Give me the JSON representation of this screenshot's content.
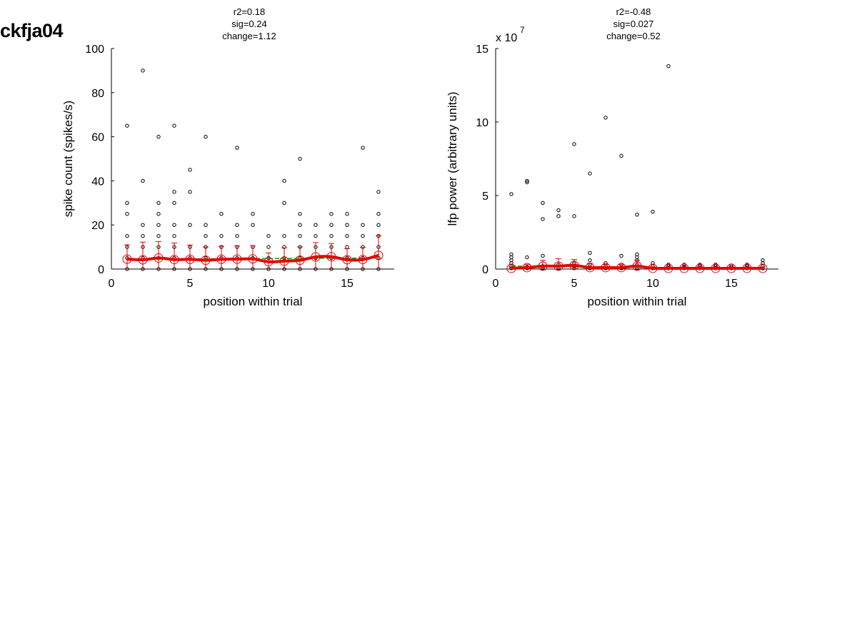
{
  "page": {
    "title": "ckfja04"
  },
  "colors": {
    "mean_line": "#e60000",
    "fit_line": "#00aa00",
    "points": "#000000",
    "axis": "#000000"
  },
  "chart_data": [
    {
      "type": "scatter",
      "title_lines": [
        "r2=0.18",
        "sig=0.24",
        "change=1.12"
      ],
      "xlabel": "position within trial",
      "ylabel": "spike count (spikes/s)",
      "xlim": [
        0,
        18
      ],
      "ylim": [
        0,
        100
      ],
      "xticks": [
        0,
        5,
        10,
        15
      ],
      "yticks": [
        0,
        20,
        40,
        60,
        80,
        100
      ],
      "exponent_label": "",
      "grid": false,
      "points": [
        [
          1,
          0
        ],
        [
          1,
          5
        ],
        [
          1,
          10
        ],
        [
          1,
          15
        ],
        [
          1,
          25
        ],
        [
          1,
          30
        ],
        [
          1,
          65
        ],
        [
          2,
          0
        ],
        [
          2,
          5
        ],
        [
          2,
          10
        ],
        [
          2,
          15
        ],
        [
          2,
          20
        ],
        [
          2,
          40
        ],
        [
          2,
          90
        ],
        [
          3,
          0
        ],
        [
          3,
          5
        ],
        [
          3,
          10
        ],
        [
          3,
          15
        ],
        [
          3,
          20
        ],
        [
          3,
          25
        ],
        [
          3,
          30
        ],
        [
          3,
          60
        ],
        [
          4,
          0
        ],
        [
          4,
          5
        ],
        [
          4,
          10
        ],
        [
          4,
          15
        ],
        [
          4,
          20
        ],
        [
          4,
          30
        ],
        [
          4,
          35
        ],
        [
          4,
          65
        ],
        [
          5,
          0
        ],
        [
          5,
          5
        ],
        [
          5,
          10
        ],
        [
          5,
          20
        ],
        [
          5,
          35
        ],
        [
          5,
          45
        ],
        [
          6,
          0
        ],
        [
          6,
          5
        ],
        [
          6,
          10
        ],
        [
          6,
          15
        ],
        [
          6,
          20
        ],
        [
          6,
          60
        ],
        [
          7,
          0
        ],
        [
          7,
          5
        ],
        [
          7,
          10
        ],
        [
          7,
          15
        ],
        [
          7,
          25
        ],
        [
          8,
          0
        ],
        [
          8,
          5
        ],
        [
          8,
          10
        ],
        [
          8,
          15
        ],
        [
          8,
          20
        ],
        [
          8,
          55
        ],
        [
          9,
          0
        ],
        [
          9,
          5
        ],
        [
          9,
          10
        ],
        [
          9,
          20
        ],
        [
          9,
          25
        ],
        [
          10,
          0
        ],
        [
          10,
          5
        ],
        [
          10,
          10
        ],
        [
          10,
          15
        ],
        [
          11,
          0
        ],
        [
          11,
          5
        ],
        [
          11,
          10
        ],
        [
          11,
          15
        ],
        [
          11,
          30
        ],
        [
          11,
          40
        ],
        [
          12,
          0
        ],
        [
          12,
          5
        ],
        [
          12,
          10
        ],
        [
          12,
          15
        ],
        [
          12,
          20
        ],
        [
          12,
          25
        ],
        [
          12,
          50
        ],
        [
          13,
          0
        ],
        [
          13,
          5
        ],
        [
          13,
          10
        ],
        [
          13,
          15
        ],
        [
          13,
          20
        ],
        [
          14,
          0
        ],
        [
          14,
          5
        ],
        [
          14,
          10
        ],
        [
          14,
          15
        ],
        [
          14,
          20
        ],
        [
          14,
          25
        ],
        [
          15,
          0
        ],
        [
          15,
          5
        ],
        [
          15,
          10
        ],
        [
          15,
          15
        ],
        [
          15,
          20
        ],
        [
          15,
          25
        ],
        [
          16,
          0
        ],
        [
          16,
          5
        ],
        [
          16,
          10
        ],
        [
          16,
          15
        ],
        [
          16,
          20
        ],
        [
          16,
          55
        ],
        [
          17,
          0
        ],
        [
          17,
          5
        ],
        [
          17,
          10
        ],
        [
          17,
          15
        ],
        [
          17,
          20
        ],
        [
          17,
          25
        ],
        [
          17,
          35
        ]
      ],
      "mean": {
        "x": [
          1,
          2,
          3,
          4,
          5,
          6,
          7,
          8,
          9,
          10,
          11,
          12,
          13,
          14,
          15,
          16,
          17
        ],
        "y": [
          4.5,
          4.2,
          5.0,
          4.3,
          4.4,
          4.0,
          4.4,
          4.5,
          4.6,
          3.3,
          3.6,
          4.0,
          5.5,
          5.6,
          4.2,
          4.3,
          6.2
        ],
        "err": [
          6.5,
          8.0,
          7.5,
          7.5,
          6.5,
          6.0,
          6.0,
          6.0,
          6.0,
          4.0,
          6.0,
          6.0,
          6.5,
          6.0,
          5.0,
          5.5,
          9.0
        ]
      },
      "fit": {
        "x": [
          1,
          17
        ],
        "y": [
          4.5,
          5.0
        ]
      }
    },
    {
      "type": "scatter",
      "title_lines": [
        "r2=-0.48",
        "sig=0.027",
        "change=0.52"
      ],
      "xlabel": "position within trial",
      "ylabel": "lfp power (arbitrary units)",
      "xlim": [
        0,
        18
      ],
      "ylim": [
        0,
        15
      ],
      "xticks": [
        0,
        5,
        10,
        15
      ],
      "yticks": [
        0,
        5,
        10,
        15
      ],
      "exponent_label": "x 10",
      "exponent_power": "7",
      "grid": false,
      "points": [
        [
          1,
          0.05
        ],
        [
          1,
          0.2
        ],
        [
          1,
          0.4
        ],
        [
          1,
          0.6
        ],
        [
          1,
          0.8
        ],
        [
          1,
          1.0
        ],
        [
          1,
          5.1
        ],
        [
          2,
          0.05
        ],
        [
          2,
          0.15
        ],
        [
          2,
          0.8
        ],
        [
          2,
          5.9
        ],
        [
          2,
          6.0
        ],
        [
          3,
          0.05
        ],
        [
          3,
          0.2
        ],
        [
          3,
          0.9
        ],
        [
          3,
          3.4
        ],
        [
          3,
          4.5
        ],
        [
          4,
          0.05
        ],
        [
          4,
          0.3
        ],
        [
          4,
          3.6
        ],
        [
          4,
          4.0
        ],
        [
          5,
          0.05
        ],
        [
          5,
          0.2
        ],
        [
          5,
          0.4
        ],
        [
          5,
          3.6
        ],
        [
          5,
          8.5
        ],
        [
          6,
          0.05
        ],
        [
          6,
          0.3
        ],
        [
          6,
          0.6
        ],
        [
          6,
          1.1
        ],
        [
          6,
          6.5
        ],
        [
          7,
          0.05
        ],
        [
          7,
          0.2
        ],
        [
          7,
          0.4
        ],
        [
          7,
          10.3
        ],
        [
          8,
          0.05
        ],
        [
          8,
          0.3
        ],
        [
          8,
          0.9
        ],
        [
          8,
          7.7
        ],
        [
          9,
          0.05
        ],
        [
          9,
          0.3
        ],
        [
          9,
          0.6
        ],
        [
          9,
          0.8
        ],
        [
          9,
          1.0
        ],
        [
          9,
          3.7
        ],
        [
          10,
          0.05
        ],
        [
          10,
          0.2
        ],
        [
          10,
          0.4
        ],
        [
          10,
          3.9
        ],
        [
          11,
          0.05
        ],
        [
          11,
          0.2
        ],
        [
          11,
          0.3
        ],
        [
          11,
          13.8
        ],
        [
          12,
          0.05
        ],
        [
          12,
          0.15
        ],
        [
          12,
          0.3
        ],
        [
          13,
          0.05
        ],
        [
          13,
          0.2
        ],
        [
          13,
          0.3
        ],
        [
          14,
          0.05
        ],
        [
          14,
          0.2
        ],
        [
          14,
          0.3
        ],
        [
          15,
          0.05
        ],
        [
          15,
          0.15
        ],
        [
          15,
          0.25
        ],
        [
          16,
          0.05
        ],
        [
          16,
          0.2
        ],
        [
          16,
          0.3
        ],
        [
          17,
          0.05
        ],
        [
          17,
          0.2
        ],
        [
          17,
          0.4
        ],
        [
          17,
          0.6
        ]
      ],
      "mean": {
        "x": [
          1,
          2,
          3,
          4,
          5,
          6,
          7,
          8,
          9,
          10,
          11,
          12,
          13,
          14,
          15,
          16,
          17
        ],
        "y": [
          0.05,
          0.1,
          0.2,
          0.2,
          0.25,
          0.1,
          0.1,
          0.1,
          0.2,
          0.05,
          0.05,
          0.05,
          0.05,
          0.05,
          0.05,
          0.05,
          0.05
        ],
        "err": [
          0.1,
          0.2,
          0.4,
          0.5,
          0.4,
          0.3,
          0.2,
          0.2,
          0.4,
          0.1,
          0.1,
          0.1,
          0.1,
          0.1,
          0.1,
          0.1,
          0.1
        ]
      },
      "fit": {
        "x": [
          1,
          17
        ],
        "y": [
          0.2,
          0.05
        ]
      }
    }
  ]
}
